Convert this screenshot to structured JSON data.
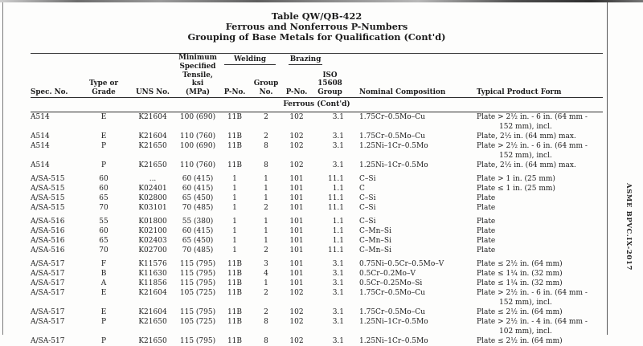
{
  "page": {
    "sidebar_text": "ASME BPVC.IX-2017"
  },
  "title": {
    "line1": "Table QW/QB-422",
    "line2": "Ferrous and Nonferrous P-Numbers",
    "line3": "Grouping of Base Metals for Qualification (Cont'd)"
  },
  "table": {
    "headers": {
      "spec": "Spec. No.",
      "grade": "Type or Grade",
      "uns": "UNS No.",
      "tensile1": "Minimum",
      "tensile2": "Specified",
      "tensile3": "Tensile, ksi",
      "tensile4": "(MPa)",
      "welding": "Welding",
      "brazing": "Brazing",
      "weld_pno": "P-No.",
      "group1": "Group",
      "group2": "No.",
      "braz_pno": "P-No.",
      "iso1": "ISO 15608",
      "iso2": "Group",
      "comp": "Nominal Composition",
      "form": "Typical Product Form"
    },
    "section": "Ferrous (Cont'd)",
    "groups": [
      [
        [
          "A514",
          "E",
          "K21604",
          "100 (690)",
          "11B",
          "2",
          "102",
          "3.1",
          "1.75Cr–0.5Mo–Cu",
          "Plate > 2½ in. - 6 in. (64 mm -\n152 mm), incl."
        ],
        [
          "A514",
          "E",
          "K21604",
          "110 (760)",
          "11B",
          "2",
          "102",
          "3.1",
          "1.75Cr–0.5Mo–Cu",
          "Plate, 2½ in. (64 mm) max."
        ],
        [
          "A514",
          "P",
          "K21650",
          "100 (690)",
          "11B",
          "8",
          "102",
          "3.1",
          "1.25Ni–1Cr–0.5Mo",
          "Plate > 2½ in. - 6 in. (64 mm -\n152 mm), incl."
        ],
        [
          "A514",
          "P",
          "K21650",
          "110 (760)",
          "11B",
          "8",
          "102",
          "3.1",
          "1.25Ni–1Cr–0.5Mo",
          "Plate, 2½ in. (64 mm) max."
        ]
      ],
      [
        [
          "A/SA-515",
          "60",
          "...",
          "60 (415)",
          "1",
          "1",
          "101",
          "11.1",
          "C–Si",
          "Plate > 1 in. (25 mm)"
        ],
        [
          "A/SA-515",
          "60",
          "K02401",
          "60 (415)",
          "1",
          "1",
          "101",
          "1.1",
          "C",
          "Plate ≤ 1 in. (25 mm)"
        ],
        [
          "A/SA-515",
          "65",
          "K02800",
          "65 (450)",
          "1",
          "1",
          "101",
          "11.1",
          "C–Si",
          "Plate"
        ],
        [
          "A/SA-515",
          "70",
          "K03101",
          "70 (485)",
          "1",
          "2",
          "101",
          "11.1",
          "C–Si",
          "Plate"
        ]
      ],
      [
        [
          "A/SA-516",
          "55",
          "K01800",
          "55 (380)",
          "1",
          "1",
          "101",
          "1.1",
          "C–Si",
          "Plate"
        ],
        [
          "A/SA-516",
          "60",
          "K02100",
          "60 (415)",
          "1",
          "1",
          "101",
          "1.1",
          "C–Mn–Si",
          "Plate"
        ],
        [
          "A/SA-516",
          "65",
          "K02403",
          "65 (450)",
          "1",
          "1",
          "101",
          "1.1",
          "C–Mn–Si",
          "Plate"
        ],
        [
          "A/SA-516",
          "70",
          "K02700",
          "70 (485)",
          "1",
          "2",
          "101",
          "11.1",
          "C–Mn–Si",
          "Plate"
        ]
      ],
      [
        [
          "A/SA-517",
          "F",
          "K11576",
          "115 (795)",
          "11B",
          "3",
          "101",
          "3.1",
          "0.75Ni–0.5Cr–0.5Mo–V",
          "Plate ≤ 2½ in. (64 mm)"
        ],
        [
          "A/SA-517",
          "B",
          "K11630",
          "115 (795)",
          "11B",
          "4",
          "101",
          "3.1",
          "0.5Cr–0.2Mo–V",
          "Plate ≤ 1¼ in. (32 mm)"
        ],
        [
          "A/SA-517",
          "A",
          "K11856",
          "115 (795)",
          "11B",
          "1",
          "101",
          "3.1",
          "0.5Cr–0.25Mo–Si",
          "Plate ≤ 1¼ in. (32 mm)"
        ],
        [
          "A/SA-517",
          "E",
          "K21604",
          "105 (725)",
          "11B",
          "2",
          "102",
          "3.1",
          "1.75Cr–0.5Mo–Cu",
          "Plate > 2½ in. - 6 in. (64 mm -\n152 mm), incl."
        ],
        [
          "A/SA-517",
          "E",
          "K21604",
          "115 (795)",
          "11B",
          "2",
          "102",
          "3.1",
          "1.75Cr–0.5Mo–Cu",
          "Plate ≤ 2½ in. (64 mm)"
        ],
        [
          "A/SA-517",
          "P",
          "K21650",
          "105 (725)",
          "11B",
          "8",
          "102",
          "3.1",
          "1.25Ni–1Cr–0.5Mo",
          "Plate > 2½ in. - 4 in. (64 mm -\n102 mm), incl."
        ],
        [
          "A/SA-517",
          "P",
          "K21650",
          "115 (795)",
          "11B",
          "8",
          "102",
          "3.1",
          "1.25Ni–1Cr–0.5Mo",
          "Plate ≤ 2½ in. (64 mm)"
        ]
      ]
    ]
  }
}
